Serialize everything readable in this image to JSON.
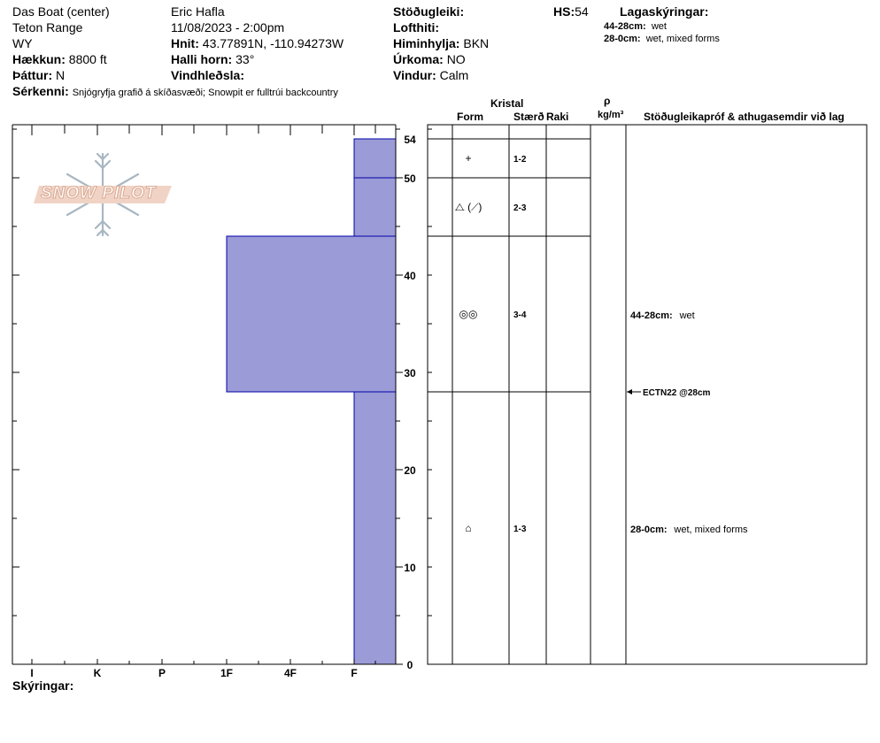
{
  "header": {
    "location": "Das Boat (center)",
    "range": "Teton Range",
    "state": "WY",
    "elevation_label": "Hækkun:",
    "elevation_value": "8800 ft",
    "aspect_label": "Þáttur:",
    "aspect_value": "N",
    "observer": "Eric Hafla",
    "datetime": "11/08/2023 - 2:00pm",
    "coords_label": "Hnit:",
    "coords_value": "43.77891N, -110.94273W",
    "slope_label": "Halli horn:",
    "slope_value": "33°",
    "windload_label": "Vindhleðsla:",
    "windload_value": "",
    "stability_label": "Stöðugleiki:",
    "stability_value": "",
    "hs_label": "HS:",
    "hs_value": "54",
    "airtemp_label": "Lofthiti:",
    "airtemp_value": "",
    "sky_label": "Himinhylja:",
    "sky_value": "BKN",
    "precip_label": "Úrkoma:",
    "precip_value": "NO",
    "wind_label": "Vindur:",
    "wind_value": "Calm",
    "layer_notes_title": "Lagaskýringar:",
    "layer_notes": [
      {
        "range": "44-28cm:",
        "text": "wet"
      },
      {
        "range": "28-0cm:",
        "text": "wet, mixed forms"
      }
    ],
    "features_label": "Sérkenni:",
    "features_value": "Snjógryfja grafið á skíðasvæði;  Snowpit er fulltrúi backcountry"
  },
  "logo_text": "SNOW PILOT",
  "columns": {
    "crystal_title": "Kristal",
    "form": "Form",
    "size": "Stærð",
    "moisture": "Raki",
    "density_symbol": "ρ",
    "density_unit": "kg/m³",
    "tests": "Stöðugleikapróf & athugasemdir við lag"
  },
  "layers": [
    {
      "top": 54,
      "bottom": 50,
      "hardness": "F",
      "form_symbol": "+",
      "size": "1-2",
      "comment_range": "",
      "comment": ""
    },
    {
      "top": 50,
      "bottom": 44,
      "hardness": "F",
      "form_symbol": "⧍ (⟋)",
      "size": "2-3",
      "comment_range": "",
      "comment": ""
    },
    {
      "top": 44,
      "bottom": 28,
      "hardness": "1F",
      "form_symbol": "◎◎",
      "size": "3-4",
      "comment_range": "44-28cm:",
      "comment": "wet"
    },
    {
      "top": 28,
      "bottom": 0,
      "hardness": "F",
      "form_symbol": "⌂",
      "size": "1-3",
      "comment_range": "28-0cm:",
      "comment": "wet, mixed forms"
    }
  ],
  "tests": [
    {
      "depth": 28,
      "label": "ECTN22 @28cm"
    }
  ],
  "footer_label": "Skýringar:",
  "colors": {
    "hardness_fill": "#9b9bd7",
    "hardness_line": "#0000aa",
    "frame": "#000000"
  },
  "chart_data": {
    "type": "bar",
    "orientation": "horizontal-step profile",
    "title": "",
    "xlabel": "",
    "ylabel": "",
    "x_categories": [
      "I",
      "K",
      "P",
      "1F",
      "4F",
      "F"
    ],
    "y_ticks": [
      0,
      10,
      20,
      30,
      40,
      50,
      54
    ],
    "ylim": [
      0,
      55
    ],
    "series": [
      {
        "values": [
          {
            "from": 0,
            "to": 28,
            "hardness": "F"
          },
          {
            "from": 28,
            "to": 44,
            "hardness": "1F"
          },
          {
            "from": 44,
            "to": 50,
            "hardness": "F"
          },
          {
            "from": 50,
            "to": 54,
            "hardness": "F"
          }
        ]
      }
    ]
  }
}
